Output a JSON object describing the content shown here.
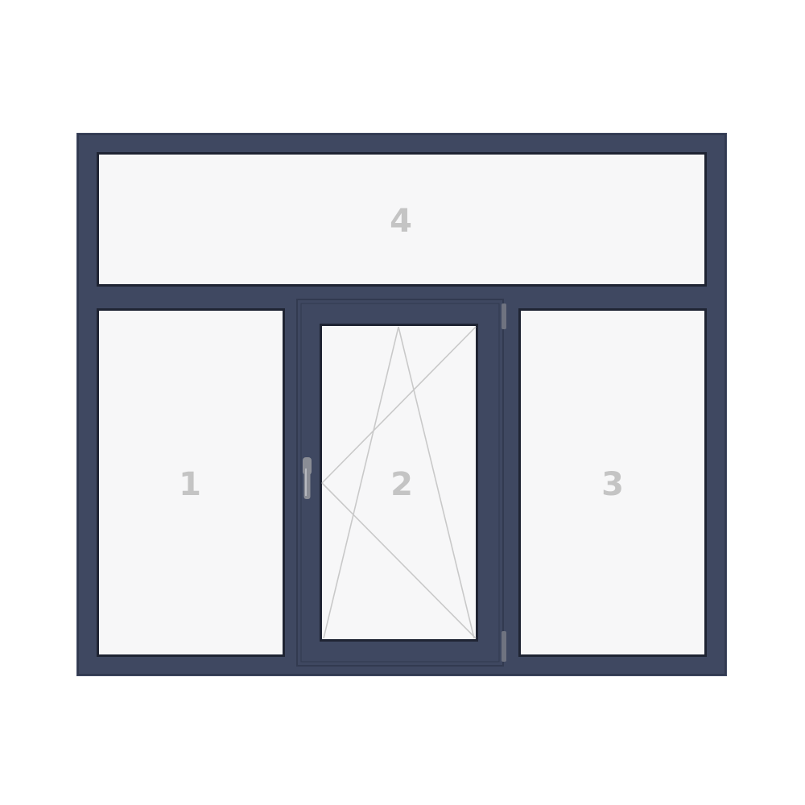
{
  "window": {
    "frame_color": "#3f4861",
    "frame_shadow_color": "#323a50",
    "glass_color": "#f7f7f8",
    "glass_edge_color": "#1f2433",
    "number_color": "#c4c4c4",
    "opening_line_color": "#c9c9c9",
    "handle_color": "#8a8d95",
    "hinge_color": "#6f7380",
    "panes": [
      {
        "number": "1",
        "type": "fixed"
      },
      {
        "number": "2",
        "type": "tilt-and-turn sash"
      },
      {
        "number": "3",
        "type": "fixed"
      },
      {
        "number": "4",
        "type": "fixed transom"
      }
    ]
  }
}
